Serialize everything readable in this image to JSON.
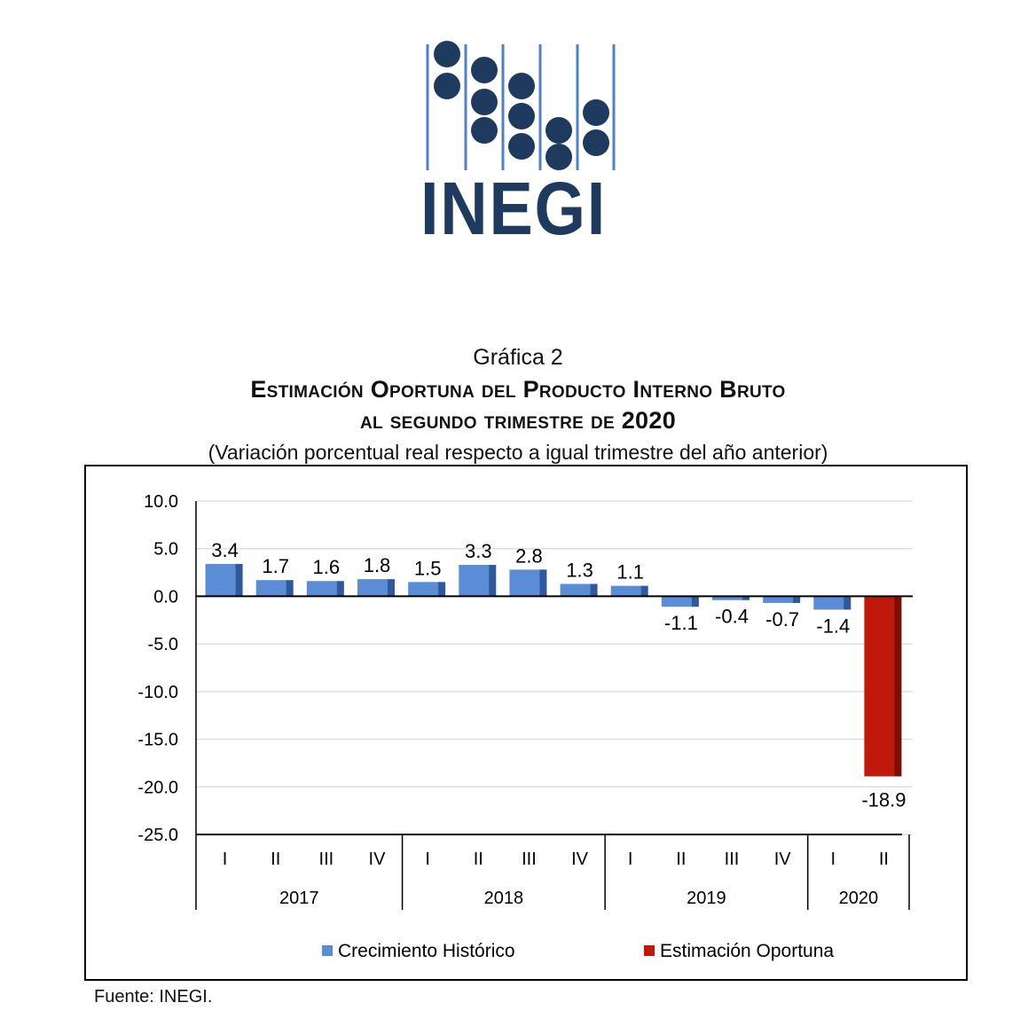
{
  "logo": {
    "text": "INEGI",
    "name": "inegi-logo"
  },
  "title": {
    "label": "Gráfica 2",
    "line1": "Estimación Oportuna del Producto Interno Bruto",
    "line2": "al segundo trimestre de 2020",
    "subtitle": "(Variación porcentual real respecto a igual trimestre del año anterior)"
  },
  "source": "Fuente: INEGI.",
  "colors": {
    "historico": "#5b8dd6",
    "historico_dark": "#2e5a9c",
    "estimacion": "#c0190c",
    "estimacion_dark": "#7a0e06",
    "logo_blue": "#1e3a5f",
    "logo_light": "#4f7fd0"
  },
  "chart_data": {
    "type": "bar",
    "title": "Estimación Oportuna del Producto Interno Bruto al segundo trimestre de 2020",
    "subtitle": "(Variación porcentual real respecto a igual trimestre del año anterior)",
    "categories": [
      "I",
      "II",
      "III",
      "IV",
      "I",
      "II",
      "III",
      "IV",
      "I",
      "II",
      "III",
      "IV",
      "I",
      "II"
    ],
    "groups": [
      {
        "label": "2017",
        "count": 4
      },
      {
        "label": "2018",
        "count": 4
      },
      {
        "label": "2019",
        "count": 4
      },
      {
        "label": "2020",
        "count": 2
      }
    ],
    "values": [
      3.4,
      1.7,
      1.6,
      1.8,
      1.5,
      3.3,
      2.8,
      1.3,
      1.1,
      -1.1,
      -0.4,
      -0.7,
      -1.4,
      -18.9
    ],
    "labels": [
      "3.4",
      "1.7",
      "1.6",
      "1.8",
      "1.5",
      "3.3",
      "2.8",
      "1.3",
      "1.1",
      "-1.1",
      "-0.4",
      "-0.7",
      "-1.4",
      "-18.9"
    ],
    "series_index": [
      0,
      0,
      0,
      0,
      0,
      0,
      0,
      0,
      0,
      0,
      0,
      0,
      0,
      1
    ],
    "series": [
      {
        "name": "Crecimiento  Histórico"
      },
      {
        "name": "Estimación Oportuna"
      }
    ],
    "yticks": [
      "10.0",
      "5.0",
      "0.0",
      "-5.0",
      "-10.0",
      "-15.0",
      "-20.0",
      "-25.0"
    ],
    "ylim": [
      -25,
      10
    ],
    "grid": true,
    "legend": "bottom"
  }
}
